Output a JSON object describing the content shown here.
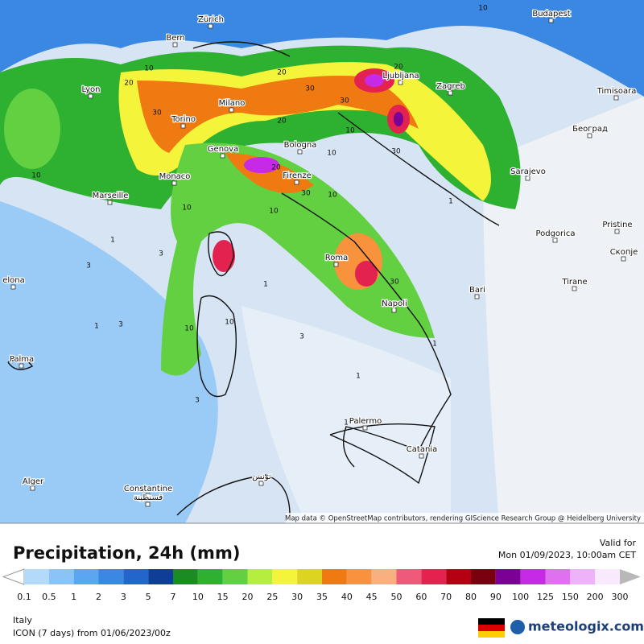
{
  "map": {
    "cities": [
      "Budapest",
      "Zürich",
      "Bern",
      "Lyon",
      "Milano",
      "Ljubljana",
      "Zagreb",
      "Timisoara",
      "Torino",
      "Genova",
      "Bologna",
      "Београд",
      "Monaco",
      "Firenze",
      "Marseille",
      "Sarajevo",
      "Podgorica",
      "Pristine",
      "Скопје",
      "Roma",
      "Tirane",
      "elona",
      "Bari",
      "Napoli",
      "Palma",
      "Palermo",
      "Catania",
      "Alger",
      "Constantine",
      "قسنطينة",
      "تونس"
    ],
    "contour_labels": [
      "10",
      "20",
      "30",
      "20",
      "20",
      "30",
      "10",
      "10",
      "30",
      "20",
      "30",
      "10",
      "10",
      "20",
      "30",
      "10",
      "10",
      "3",
      "1",
      "3",
      "10",
      "30",
      "10",
      "3",
      "1",
      "1",
      "3",
      "1",
      "1",
      "3",
      "10",
      "1",
      "1"
    ],
    "attribution": "Map data © OpenStreetMap contributors, rendering GIScience Research Group @ Heidelberg University"
  },
  "footer": {
    "title": "Precipitation, 24h (mm)",
    "valid_label": "Valid for",
    "valid_time": "Mon 01/09/2023, 10:00am CET",
    "region": "Italy",
    "model": "ICON (7 days)  from  01/06/2023/00z",
    "brand": "meteologix.com"
  },
  "legend": {
    "ticks": [
      "0.1",
      "0.5",
      "1",
      "2",
      "3",
      "5",
      "7",
      "10",
      "15",
      "20",
      "25",
      "30",
      "35",
      "40",
      "45",
      "50",
      "60",
      "70",
      "80",
      "90",
      "100",
      "125",
      "150",
      "200",
      "300"
    ],
    "colors": [
      "#b4dafa",
      "#8ac4f6",
      "#5aa6f0",
      "#3a88e2",
      "#2266cc",
      "#0e3e98",
      "#1a8c22",
      "#2eb030",
      "#62d040",
      "#b6ee40",
      "#f4f43a",
      "#dcd420",
      "#f07a12",
      "#f8923c",
      "#f8b080",
      "#f05a7a",
      "#e42250",
      "#b40012",
      "#7a0010",
      "#7a0096",
      "#c62ae6",
      "#e070f0",
      "#eeb2f8",
      "#f8eafc"
    ],
    "under_color": "#ffffff",
    "over_color": "#b8b8b8"
  }
}
